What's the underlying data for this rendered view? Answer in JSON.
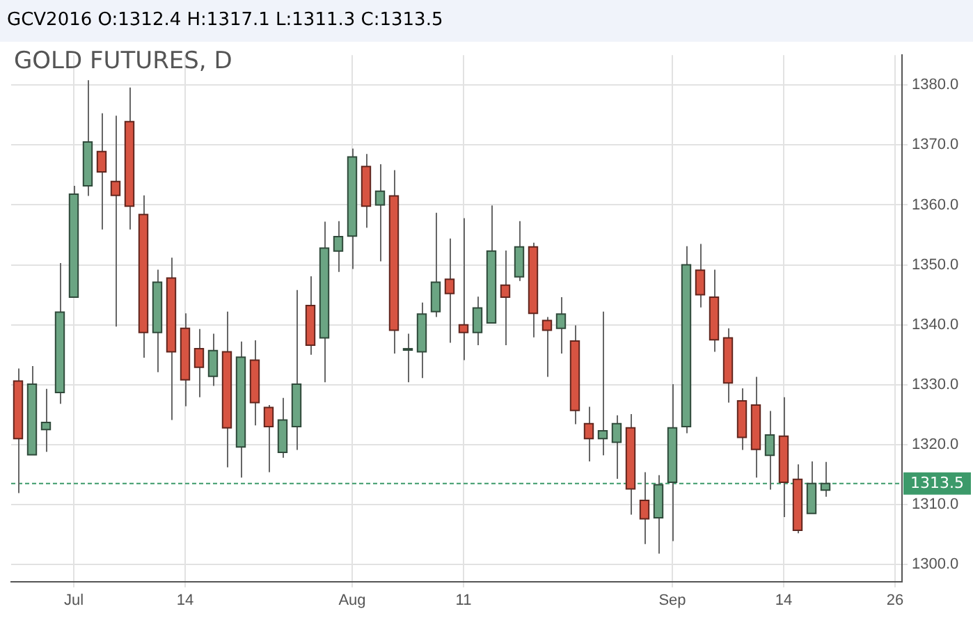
{
  "chart_data": {
    "type": "candlestick",
    "title": "GOLD FUTURES, D",
    "subtitle": "GCV2016 O:1312.4 H:1317.1 L:1311.3 C:1313.5",
    "categories": [
      null,
      null,
      null,
      null,
      "Jul",
      null,
      null,
      null,
      null,
      null,
      null,
      null,
      "14",
      null,
      null,
      null,
      null,
      null,
      null,
      null,
      null,
      null,
      null,
      null,
      "Aug",
      null,
      null,
      null,
      null,
      null,
      null,
      null,
      "11",
      null,
      null,
      null,
      null,
      null,
      null,
      null,
      null,
      null,
      null,
      null,
      null,
      null,
      null,
      "Sep",
      null,
      null,
      null,
      null,
      null,
      null,
      null,
      "14",
      null,
      null,
      null,
      null,
      null,
      null,
      null,
      "26"
    ],
    "ohlc": [
      [
        1330.6,
        1332.7,
        1311.9,
        1321.0
      ],
      [
        1318.3,
        1333.1,
        1318.3,
        1330.1
      ],
      [
        1322.5,
        1329.3,
        1318.8,
        1323.7
      ],
      [
        1328.7,
        1350.3,
        1326.8,
        1342.1
      ],
      [
        1344.6,
        1363.2,
        1344.6,
        1361.8
      ],
      [
        1363.2,
        1380.8,
        1361.5,
        1370.5
      ],
      [
        1368.9,
        1375.3,
        1355.9,
        1365.5
      ],
      [
        1363.9,
        1374.9,
        1339.7,
        1361.6
      ],
      [
        1373.9,
        1379.6,
        1355.9,
        1359.8
      ],
      [
        1358.4,
        1361.6,
        1334.5,
        1338.7
      ],
      [
        1338.7,
        1349.2,
        1332.1,
        1347.1
      ],
      [
        1347.8,
        1351.2,
        1324.1,
        1335.5
      ],
      [
        1339.4,
        1341.9,
        1326.4,
        1330.8
      ],
      [
        1336.0,
        1339.3,
        1327.9,
        1332.9
      ],
      [
        1331.4,
        1338.5,
        1329.8,
        1335.7
      ],
      [
        1335.5,
        1342.2,
        1316.2,
        1322.8
      ],
      [
        1319.6,
        1337.2,
        1314.5,
        1334.6
      ],
      [
        1334.1,
        1337.4,
        1323.2,
        1327.0
      ],
      [
        1326.2,
        1326.6,
        1315.4,
        1323.0
      ],
      [
        1318.7,
        1327.8,
        1317.8,
        1324.1
      ],
      [
        1323.0,
        1345.8,
        1319.1,
        1330.1
      ],
      [
        1343.2,
        1348.1,
        1335.0,
        1336.6
      ],
      [
        1337.8,
        1357.2,
        1330.4,
        1352.8
      ],
      [
        1352.3,
        1357.3,
        1348.8,
        1354.7
      ],
      [
        1354.8,
        1369.4,
        1349.3,
        1368.0
      ],
      [
        1366.4,
        1368.5,
        1356.2,
        1359.8
      ],
      [
        1360.0,
        1366.8,
        1350.6,
        1362.3
      ],
      [
        1361.5,
        1365.8,
        1335.2,
        1339.1
      ],
      [
        1336.0,
        1338.5,
        1330.4,
        1336.0
      ],
      [
        1335.5,
        1343.7,
        1331.1,
        1341.8
      ],
      [
        1342.2,
        1358.7,
        1341.3,
        1347.1
      ],
      [
        1347.6,
        1354.4,
        1337.0,
        1345.2
      ],
      [
        1340.0,
        1357.8,
        1334.1,
        1338.7
      ],
      [
        1338.7,
        1344.7,
        1336.6,
        1342.8
      ],
      [
        1340.3,
        1359.9,
        1340.3,
        1352.3
      ],
      [
        1346.6,
        1352.4,
        1336.6,
        1344.6
      ],
      [
        1348.0,
        1357.3,
        1347.3,
        1353.0
      ],
      [
        1353.0,
        1353.7,
        1337.9,
        1341.9
      ],
      [
        1340.7,
        1341.3,
        1331.3,
        1339.1
      ],
      [
        1339.4,
        1344.6,
        1335.2,
        1341.8
      ],
      [
        1337.3,
        1339.9,
        1323.4,
        1325.7
      ],
      [
        1323.5,
        1326.3,
        1317.2,
        1321.0
      ],
      [
        1321.0,
        1342.2,
        1318.2,
        1322.3
      ],
      [
        1320.4,
        1324.9,
        1314.3,
        1323.5
      ],
      [
        1322.8,
        1325.1,
        1308.3,
        1312.6
      ],
      [
        1310.7,
        1315.4,
        1303.4,
        1307.6
      ],
      [
        1307.8,
        1314.9,
        1301.8,
        1313.3
      ],
      [
        1313.7,
        1330.1,
        1303.9,
        1322.8
      ],
      [
        1323.0,
        1353.1,
        1321.9,
        1350.0
      ],
      [
        1349.1,
        1353.5,
        1342.9,
        1345.0
      ],
      [
        1344.6,
        1349.2,
        1335.5,
        1337.5
      ],
      [
        1337.8,
        1339.4,
        1327.0,
        1330.3
      ],
      [
        1327.3,
        1329.4,
        1319.1,
        1321.2
      ],
      [
        1326.6,
        1331.3,
        1314.5,
        1319.2
      ],
      [
        1318.2,
        1325.6,
        1312.5,
        1321.6
      ],
      [
        1321.4,
        1327.9,
        1307.9,
        1313.7
      ],
      [
        1314.2,
        1316.7,
        1305.2,
        1305.7
      ],
      [
        1308.5,
        1317.2,
        1308.5,
        1313.5
      ],
      [
        1312.4,
        1317.1,
        1311.3,
        1313.5
      ],
      null,
      null,
      null,
      null,
      null
    ],
    "colors": [
      "#d75442",
      "#6ba583",
      "#6ba583",
      "#6ba583",
      "#6ba583",
      "#6ba583",
      "#d75442",
      "#d75442",
      "#d75442",
      "#d75442",
      "#6ba583",
      "#d75442",
      "#d75442",
      "#d75442",
      "#6ba583",
      "#d75442",
      "#6ba583",
      "#d75442",
      "#d75442",
      "#6ba583",
      "#6ba583",
      "#d75442",
      "#6ba583",
      "#6ba583",
      "#6ba583",
      "#d75442",
      "#6ba583",
      "#d75442",
      "#6ba583",
      "#6ba583",
      "#6ba583",
      "#d75442",
      "#d75442",
      "#6ba583",
      "#6ba583",
      "#d75442",
      "#6ba583",
      "#d75442",
      "#d75442",
      "#6ba583",
      "#d75442",
      "#d75442",
      "#6ba583",
      "#6ba583",
      "#d75442",
      "#d75442",
      "#6ba583",
      "#6ba583",
      "#6ba583",
      "#d75442",
      "#d75442",
      "#d75442",
      "#d75442",
      "#d75442",
      "#6ba583",
      "#d75442",
      "#d75442",
      "#6ba583",
      "#6ba583",
      null,
      null,
      null,
      null,
      null
    ],
    "ylim": [
      1297.1,
      1385
    ],
    "yticks": [
      {
        "value": 1300,
        "label": "1300.0"
      },
      {
        "value": 1310,
        "label": "1310.0"
      },
      {
        "value": 1320,
        "label": "1320.0"
      },
      {
        "value": 1330,
        "label": "1330.0"
      },
      {
        "value": 1340,
        "label": "1340.0"
      },
      {
        "value": 1350,
        "label": "1350.0"
      },
      {
        "value": 1360,
        "label": "1360.0"
      },
      {
        "value": 1370,
        "label": "1370.0"
      },
      {
        "value": 1380,
        "label": "1380.0"
      }
    ],
    "ref_lines": [
      {
        "axis": "y",
        "value": 1313.5,
        "label": "1313.5",
        "color": "#3c9a6a",
        "line_style": "dashed"
      }
    ],
    "grid": true,
    "legend": false
  }
}
